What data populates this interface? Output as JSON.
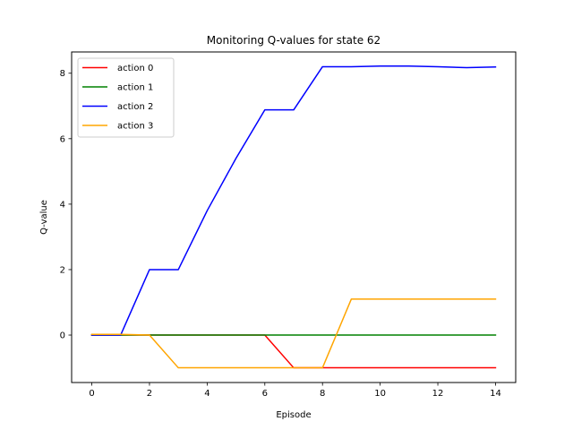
{
  "chart_data": {
    "type": "line",
    "title": "Monitoring Q-values for state 62",
    "xlabel": "Episode",
    "ylabel": "Q-value",
    "xlim": [
      -0.7,
      14.7
    ],
    "ylim": [
      -1.45,
      8.65
    ],
    "xticks": [
      0,
      2,
      4,
      6,
      8,
      10,
      12,
      14
    ],
    "yticks": [
      0,
      2,
      4,
      6,
      8
    ],
    "grid": false,
    "legend_position": "top-left",
    "x": [
      0,
      1,
      2,
      3,
      4,
      5,
      6,
      7,
      8,
      9,
      10,
      11,
      12,
      13,
      14
    ],
    "series": [
      {
        "name": "action 0",
        "color": "#ff0000",
        "values": [
          0,
          0,
          0,
          0,
          0,
          0,
          0,
          -1,
          -1,
          -1,
          -1,
          -1,
          -1,
          -1,
          -1
        ]
      },
      {
        "name": "action 1",
        "color": "#008000",
        "values": [
          0,
          0,
          0,
          0,
          0,
          0,
          0,
          0,
          0,
          0,
          0,
          0,
          0,
          0,
          0
        ]
      },
      {
        "name": "action 2",
        "color": "#0000ff",
        "values": [
          0,
          0,
          2,
          2,
          3.8,
          5.4,
          6.88,
          6.88,
          8.2,
          8.2,
          8.22,
          8.22,
          8.2,
          8.17,
          8.19
        ]
      },
      {
        "name": "action 3",
        "color": "#ffa500",
        "values": [
          0.02,
          0.02,
          0,
          -1,
          -1,
          -1,
          -1,
          -1,
          -1,
          1.1,
          1.1,
          1.1,
          1.1,
          1.1,
          1.1
        ]
      }
    ]
  }
}
